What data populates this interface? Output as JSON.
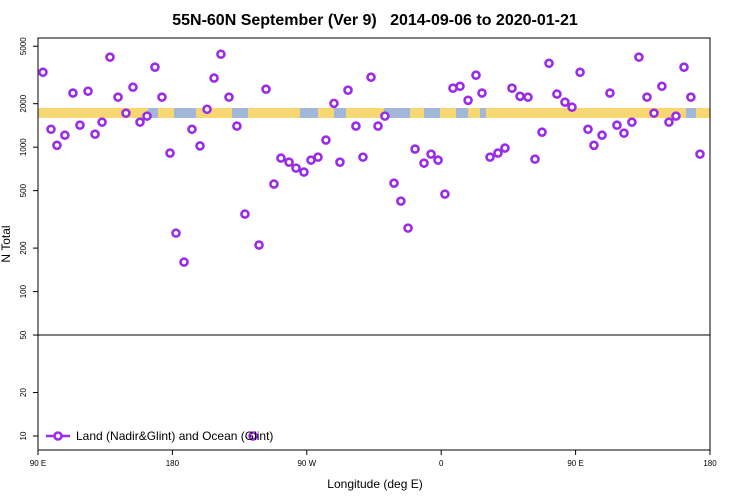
{
  "chart_data": {
    "type": "scatter",
    "title": "55N-60N September (Ver 9)   2014-09-06 to 2020-01-21",
    "x_label": "Longitude (deg E)",
    "y_label": "N Total",
    "log_y": true,
    "legend_position": "lower left",
    "hline": 50,
    "xlim": [
      90,
      540
    ],
    "ylim": [
      8,
      5700
    ],
    "xticks": [
      {
        "value": 90,
        "label": "90 E"
      },
      180,
      {
        "value": 270,
        "label": "90 W"
      },
      {
        "value": 360,
        "label": "0"
      },
      {
        "value": 450,
        "label": "90 E"
      },
      {
        "value": 540,
        "label": "180"
      }
    ],
    "yticks": [
      10,
      20,
      50,
      100,
      200,
      500,
      1000,
      2000,
      5000
    ],
    "series": [
      {
        "name": "Land (Nadir&Glint) and Ocean (Glint)",
        "color": "#9a2be8",
        "x": [
          93.3,
          98.7,
          102.7,
          108,
          113.4,
          118.1,
          123.5,
          128.2,
          132.9,
          138.2,
          143.6,
          148.9,
          153.6,
          158.3,
          163,
          168.3,
          173,
          178.4,
          182.4,
          187.8,
          193.1,
          198.5,
          203.2,
          207.9,
          212.5,
          217.9,
          223.2,
          228.6,
          234,
          238,
          242.7,
          248,
          252.7,
          258.1,
          262.8,
          268.1,
          272.8,
          277.5,
          282.8,
          288.2,
          292.2,
          297.6,
          302.9,
          307.6,
          313,
          317.7,
          322.3,
          328.4,
          333,
          337.8,
          342.5,
          348.5,
          353.2,
          357.9,
          362.5,
          367.9,
          372.6,
          378,
          383.3,
          387.3,
          392.7,
          398,
          402.7,
          407.4,
          412.8,
          418.1,
          422.8,
          427.5,
          432.2,
          437.5,
          442.9,
          447.6,
          453,
          458.3,
          462.3,
          467.7,
          473,
          477.7,
          482.4,
          487.7,
          492.4,
          497.8,
          502.5,
          507.8,
          512.5,
          517.2,
          522.6,
          527.2,
          533.3
        ],
        "values": [
          3300,
          1330,
          1030,
          1210,
          2370,
          1420,
          2440,
          1230,
          1490,
          4200,
          2220,
          1720,
          2600,
          1490,
          1640,
          3580,
          2220,
          910,
          254,
          160,
          1330,
          1020,
          1830,
          3010,
          4400,
          2220,
          1400,
          344,
          10,
          210,
          2520,
          555,
          840,
          787,
          716,
          672,
          813,
          853,
          1120,
          2010,
          787,
          2480,
          1400,
          853,
          3050,
          1400,
          1640,
          563,
          423,
          275,
          970,
          775,
          895,
          813,
          473,
          2560,
          2640,
          2110,
          3150,
          2370,
          853,
          910,
          985,
          2560,
          2250,
          2220,
          826,
          1270,
          3810,
          2330,
          2050,
          1890,
          3300,
          1330,
          1030,
          1210,
          2370,
          1420,
          1250,
          1490,
          4200,
          2220,
          1720,
          2640,
          1490,
          1640,
          3580,
          2220,
          895
        ]
      }
    ]
  }
}
